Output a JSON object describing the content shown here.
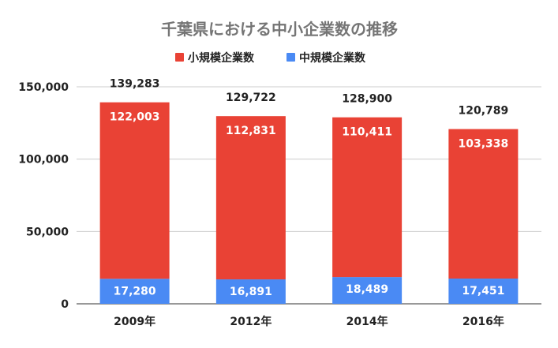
{
  "chart_data": {
    "type": "bar",
    "stacked": true,
    "title": "千葉県における中小企業数の推移",
    "categories": [
      "2009年",
      "2012年",
      "2014年",
      "2016年"
    ],
    "series": [
      {
        "name": "小規模企業数",
        "color": "#e94235",
        "values": [
          122003,
          112831,
          110411,
          103338
        ],
        "labels": [
          "122,003",
          "112,831",
          "110,411",
          "103,338"
        ]
      },
      {
        "name": "中規模企業数",
        "color": "#4a8af4",
        "values": [
          17280,
          16891,
          18489,
          17451
        ],
        "labels": [
          "17,280",
          "16,891",
          "18,489",
          "17,451"
        ]
      }
    ],
    "totals": [
      139283,
      129722,
      128900,
      120789
    ],
    "total_labels": [
      "139,283",
      "129,722",
      "128,900",
      "120,789"
    ],
    "yticks": [
      0,
      50000,
      100000,
      150000
    ],
    "ytick_labels": [
      "0",
      "50,000",
      "100,000",
      "150,000"
    ],
    "ylim": [
      0,
      150000
    ],
    "grid": true,
    "legend_position": "top"
  }
}
